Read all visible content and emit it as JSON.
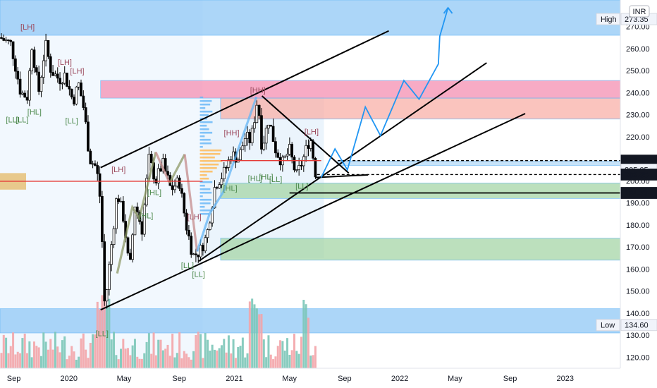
{
  "chart_data": {
    "type": "candlestick",
    "currency": "INR",
    "y_axis": {
      "range": [
        115,
        282
      ],
      "ticks": [
        120,
        130,
        140,
        150,
        160,
        170,
        180,
        190,
        200,
        210,
        220,
        230,
        240,
        250,
        260,
        270
      ],
      "tick_labels": [
        "120.00",
        "130.00",
        "140.00",
        "150.00",
        "160.00",
        "170.00",
        "180.00",
        "190.00",
        "200.00",
        "210.00",
        "220.00",
        "230.00",
        "240.00",
        "250.00",
        "260.00",
        "270.00"
      ]
    },
    "x_axis": {
      "labels": [
        "Sep",
        "2020",
        "May",
        "Sep",
        "2021",
        "May",
        "Sep",
        "2022",
        "May",
        "Sep",
        "2023"
      ],
      "label_months": [
        0,
        4,
        8,
        12,
        16,
        20,
        24,
        28,
        32,
        36,
        40
      ],
      "range_months": [
        -1,
        44
      ]
    },
    "price_tags": [
      {
        "label": "High",
        "value": 273.35,
        "text": "273.35",
        "style": "light"
      },
      {
        "label": "",
        "value": 209.15,
        "text": "209.15",
        "style": "dark"
      },
      {
        "label": "",
        "value": 205.05,
        "text": "205.05",
        "style": "light"
      },
      {
        "label": "",
        "value": 202.85,
        "text": "202.85",
        "style": "dark"
      },
      {
        "label": "",
        "value": 194.5,
        "text": "194.50",
        "style": "dark"
      },
      {
        "label": "Low",
        "value": 134.6,
        "text": "134.60",
        "style": "light"
      }
    ],
    "zones": [
      {
        "kind": "supply-blue",
        "from_month": -1,
        "to_month": 44,
        "low": 266,
        "high": 282,
        "color": "#90c8f5"
      },
      {
        "kind": "supply-pink",
        "from_month": 6.3,
        "to_month": 44,
        "low": 237.5,
        "high": 245.5,
        "color": "#f48fb1"
      },
      {
        "kind": "supply-salmon",
        "from_month": 15,
        "to_month": 44,
        "low": 228,
        "high": 237.5,
        "color": "#f8b0a8"
      },
      {
        "kind": "demand-lightblue",
        "from_month": 23.5,
        "to_month": 44,
        "low": 207,
        "high": 209,
        "color": "#b3daf7"
      },
      {
        "kind": "demand-green",
        "from_month": 15,
        "to_month": 44,
        "low": 192,
        "high": 199,
        "color": "#a5d6a7"
      },
      {
        "kind": "demand-green",
        "from_month": 15,
        "to_month": 44,
        "low": 164,
        "high": 174,
        "color": "#a5d6a7"
      },
      {
        "kind": "demand-blue",
        "from_month": -1,
        "to_month": 44,
        "low": 131,
        "high": 142,
        "color": "#90c8f5"
      }
    ],
    "structure_labels": [
      {
        "text": "[LH]",
        "month": 1.0,
        "value": 268.5,
        "kind": "high"
      },
      {
        "text": "[LH]",
        "month": 3.7,
        "value": 252.5,
        "kind": "high"
      },
      {
        "text": "[LH]",
        "month": 4.6,
        "value": 248.5,
        "kind": "high"
      },
      {
        "text": "[LL]",
        "month": -0.1,
        "value": 226.5,
        "kind": "low"
      },
      {
        "text": "[LL]",
        "month": 0.6,
        "value": 226.5,
        "kind": "low"
      },
      {
        "text": "[HL]",
        "month": 1.5,
        "value": 230.0,
        "kind": "low"
      },
      {
        "text": "[LL]",
        "month": 4.2,
        "value": 226.0,
        "kind": "low"
      },
      {
        "text": "[LH]",
        "month": 7.6,
        "value": 204.0,
        "kind": "high"
      },
      {
        "text": "[HL]",
        "month": 10.2,
        "value": 193.5,
        "kind": "low"
      },
      {
        "text": "[HL]",
        "month": 9.6,
        "value": 183.0,
        "kind": "low"
      },
      {
        "text": "[LH]",
        "month": 13.1,
        "value": 182.5,
        "kind": "high"
      },
      {
        "text": "[LL]",
        "month": 12.6,
        "value": 160.5,
        "kind": "low"
      },
      {
        "text": "[LL]",
        "month": 13.4,
        "value": 156.5,
        "kind": "low"
      },
      {
        "text": "[LL]",
        "month": 6.4,
        "value": 129.5,
        "kind": "low"
      },
      {
        "text": "[HH]",
        "month": 15.8,
        "value": 220.5,
        "kind": "high"
      },
      {
        "text": "[HH]",
        "month": 17.7,
        "value": 240.0,
        "kind": "high"
      },
      {
        "text": "[LH]",
        "month": 21.6,
        "value": 221.0,
        "kind": "high"
      },
      {
        "text": "[HL]",
        "month": 15.7,
        "value": 195.5,
        "kind": "low"
      },
      {
        "text": "[HL]",
        "month": 17.5,
        "value": 200.0,
        "kind": "low"
      },
      {
        "text": "[HL]",
        "month": 18.3,
        "value": 200.5,
        "kind": "low"
      },
      {
        "text": "[LL]",
        "month": 19.0,
        "value": 199.5,
        "kind": "low"
      },
      {
        "text": "[LL]",
        "month": 20.9,
        "value": 196.5,
        "kind": "low"
      }
    ],
    "trend_lines": [
      {
        "from": [
          6.3,
          206
        ],
        "to": [
          27.2,
          268
        ],
        "color": "#000000"
      },
      {
        "from": [
          6.3,
          141.5
        ],
        "to": [
          37.1,
          230.5
        ],
        "color": "#000000"
      },
      {
        "from": [
          13.4,
          163.5
        ],
        "to": [
          34.3,
          253.5
        ],
        "color": "#000000"
      },
      {
        "from": [
          21.9,
          201.5
        ],
        "to": [
          25.7,
          202.7
        ],
        "color": "#000000"
      },
      {
        "from": [
          18.0,
          238.5
        ],
        "to": [
          24.3,
          203.5
        ],
        "color": "#000000"
      }
    ],
    "projection_path": {
      "color": "#2196f3",
      "points": [
        [
          22.3,
          201.5
        ],
        [
          23.3,
          214.5
        ],
        [
          24.2,
          205.0
        ],
        [
          25.5,
          233.5
        ],
        [
          26.6,
          220.5
        ],
        [
          28.3,
          245.5
        ],
        [
          29.4,
          237.0
        ],
        [
          30.8,
          253.0
        ],
        [
          30.9,
          265.5
        ],
        [
          31.5,
          278.5
        ]
      ]
    },
    "horizontal_levels": [
      {
        "value": 209.15,
        "style": "dashed",
        "from_month": 23.5,
        "to_month": 44
      },
      {
        "value": 202.85,
        "style": "dashed",
        "from_month": 22.0,
        "to_month": 44
      },
      {
        "value": 194.5,
        "style": "solid",
        "from_month": 20.0,
        "to_month": 44
      },
      {
        "value": 199.8,
        "style": "solid-red",
        "from_month": -1,
        "to_month": 13.7
      },
      {
        "value": 209.15,
        "style": "solid-red",
        "from_month": 15.0,
        "to_month": 22.3
      }
    ]
  }
}
